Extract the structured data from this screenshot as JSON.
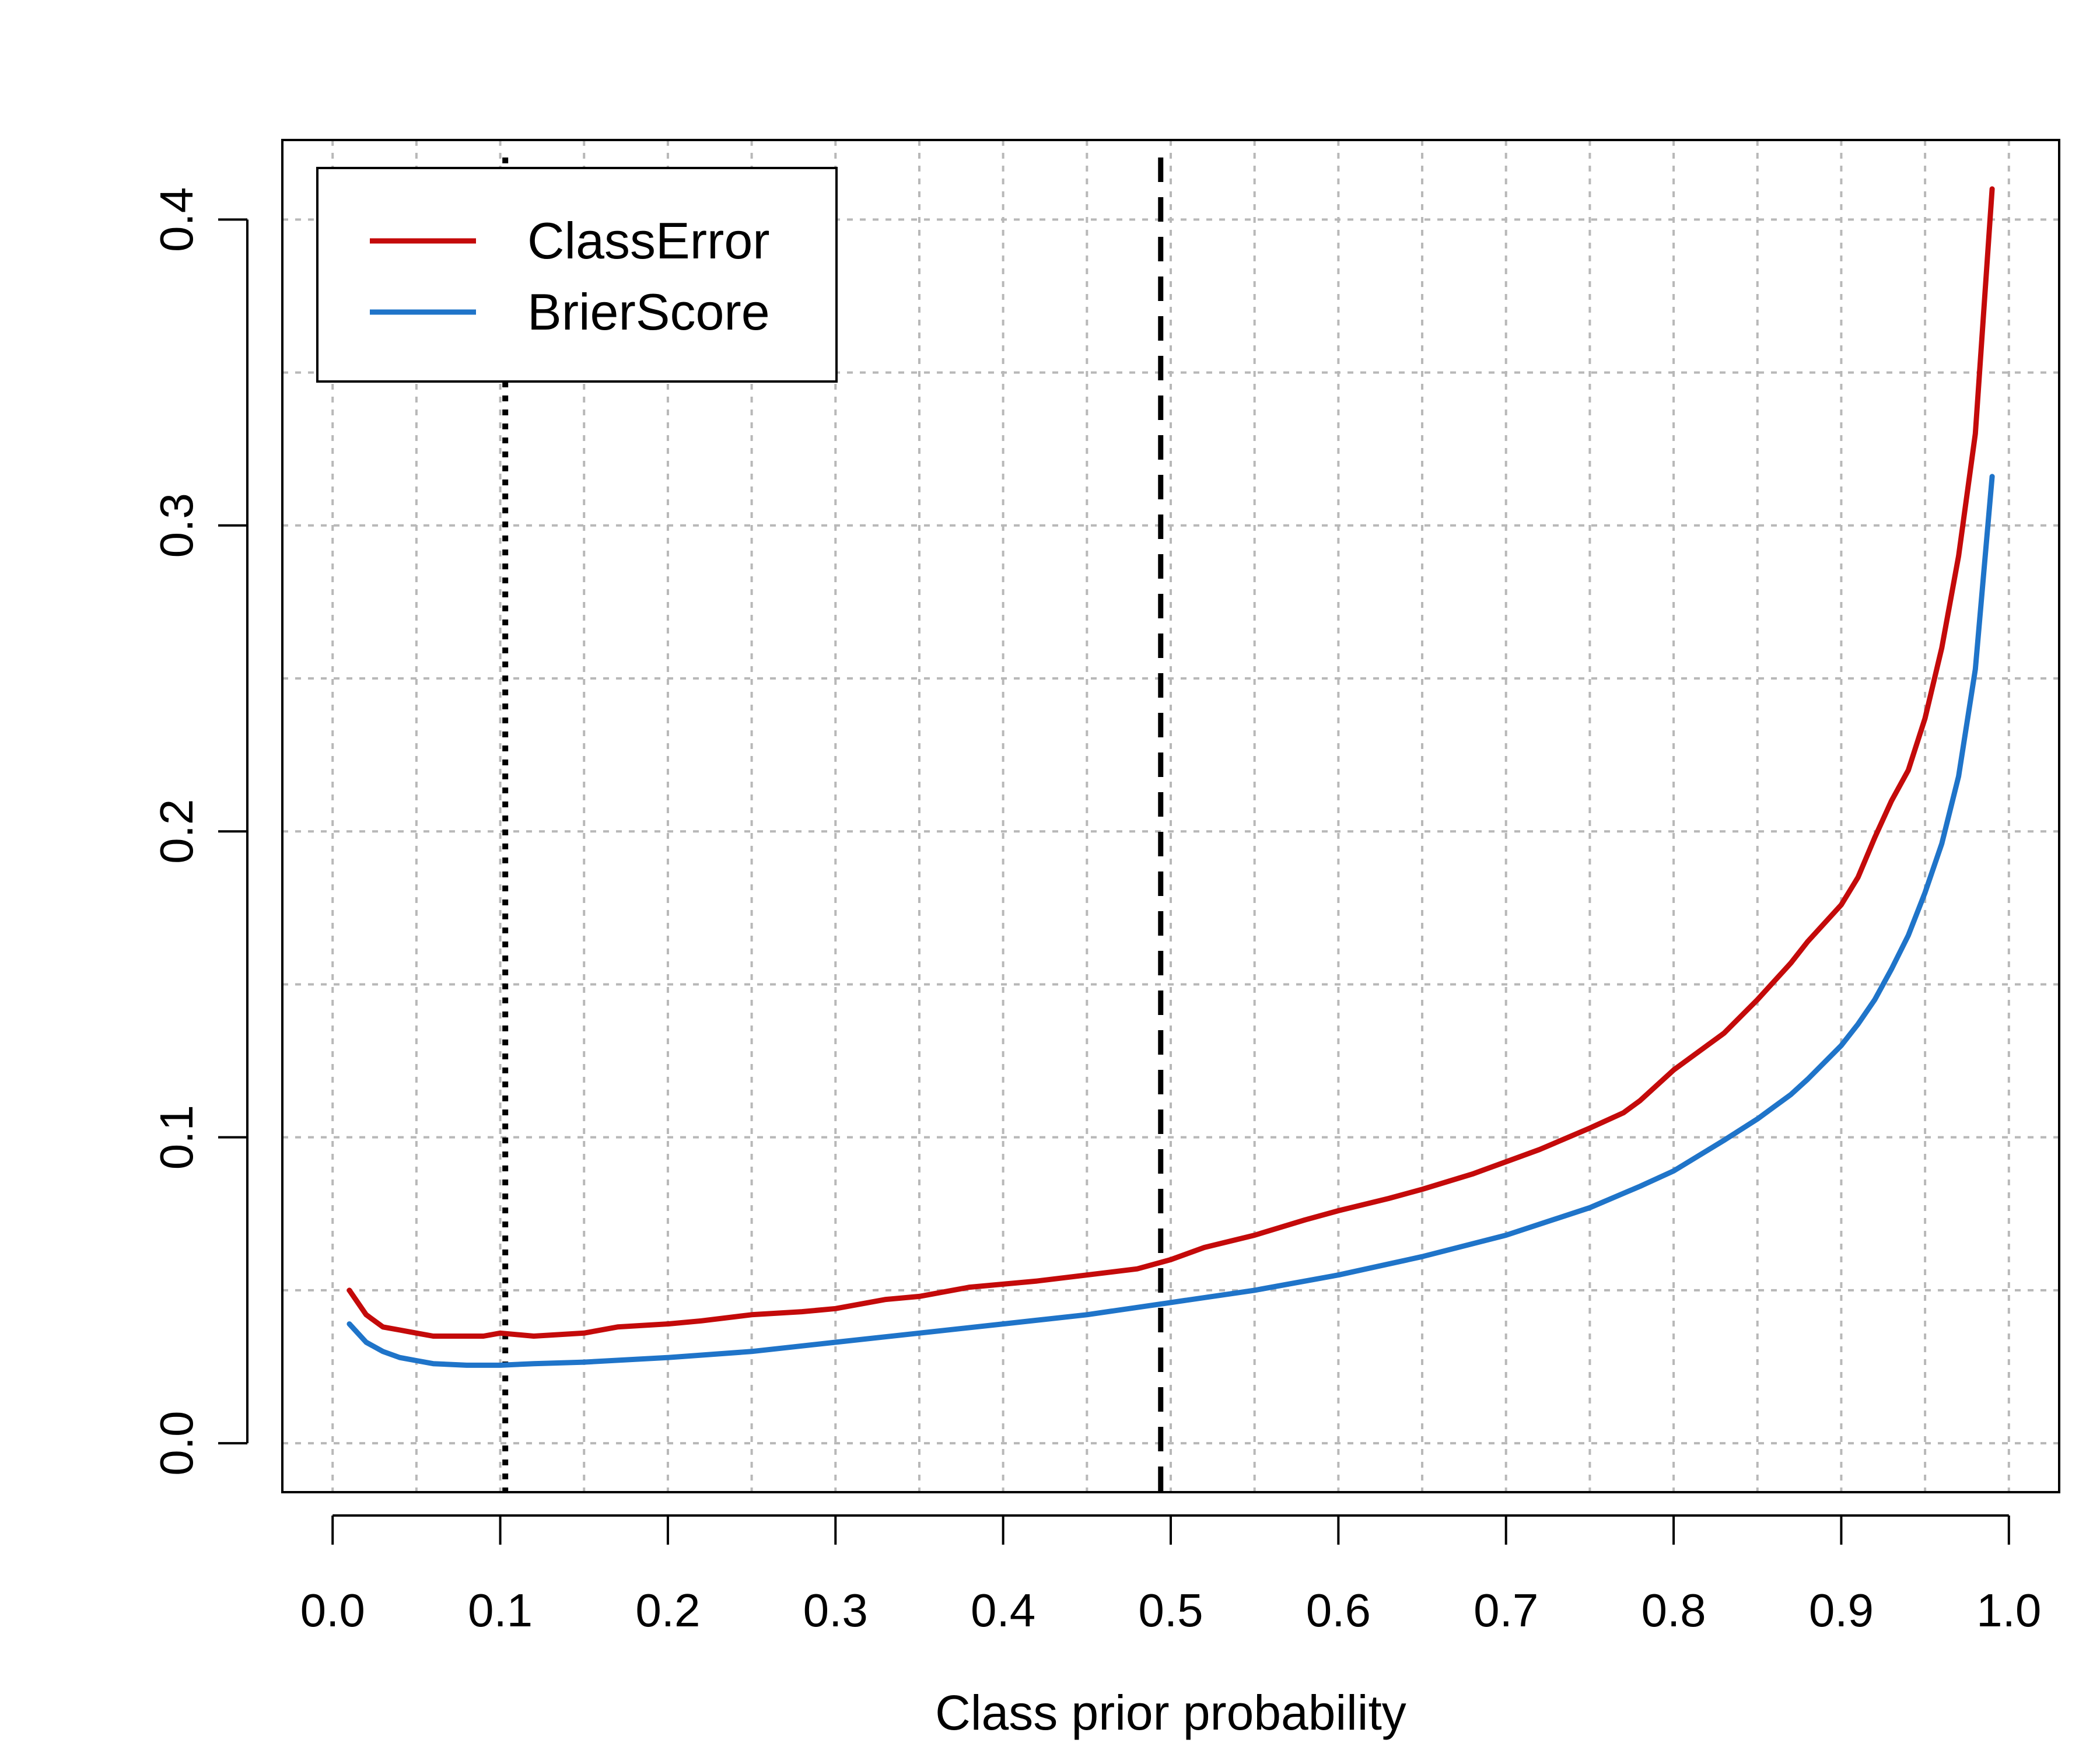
{
  "chart_data": {
    "type": "line",
    "title": "",
    "xlabel": "Class prior probability",
    "ylabel": "",
    "xlim": [
      -0.03,
      1.03
    ],
    "ylim": [
      -0.016,
      0.426
    ],
    "xticks": [
      0.0,
      0.1,
      0.2,
      0.3,
      0.4,
      0.5,
      0.6,
      0.7,
      0.8,
      0.9,
      1.0
    ],
    "xtick_labels": [
      "0.0",
      "0.1",
      "0.2",
      "0.3",
      "0.4",
      "0.5",
      "0.6",
      "0.7",
      "0.8",
      "0.9",
      "1.0"
    ],
    "yticks": [
      0.0,
      0.1,
      0.2,
      0.3,
      0.4
    ],
    "ytick_labels": [
      "0.0",
      "0.1",
      "0.2",
      "0.3",
      "0.4"
    ],
    "grid_x": [
      0.0,
      0.05,
      0.1,
      0.15,
      0.2,
      0.25,
      0.3,
      0.35,
      0.4,
      0.45,
      0.5,
      0.55,
      0.6,
      0.65,
      0.7,
      0.75,
      0.8,
      0.85,
      0.9,
      0.95,
      1.0
    ],
    "grid_y": [
      0.0,
      0.05,
      0.1,
      0.15,
      0.2,
      0.25,
      0.3,
      0.35,
      0.4
    ],
    "grid": true,
    "legend_position": "top-left",
    "series": [
      {
        "name": "ClassError",
        "color": "#c40a0a",
        "x": [
          0.01,
          0.02,
          0.03,
          0.04,
          0.05,
          0.06,
          0.07,
          0.08,
          0.09,
          0.1,
          0.12,
          0.15,
          0.17,
          0.2,
          0.22,
          0.25,
          0.28,
          0.3,
          0.33,
          0.35,
          0.38,
          0.4,
          0.42,
          0.45,
          0.48,
          0.5,
          0.52,
          0.55,
          0.58,
          0.6,
          0.63,
          0.65,
          0.68,
          0.7,
          0.72,
          0.75,
          0.77,
          0.78,
          0.8,
          0.82,
          0.83,
          0.85,
          0.87,
          0.88,
          0.9,
          0.91,
          0.92,
          0.93,
          0.94,
          0.95,
          0.96,
          0.97,
          0.98,
          0.99
        ],
        "y": [
          0.05,
          0.042,
          0.038,
          0.037,
          0.036,
          0.035,
          0.035,
          0.035,
          0.035,
          0.036,
          0.035,
          0.036,
          0.038,
          0.039,
          0.04,
          0.042,
          0.043,
          0.044,
          0.047,
          0.048,
          0.051,
          0.052,
          0.053,
          0.055,
          0.057,
          0.06,
          0.064,
          0.068,
          0.073,
          0.076,
          0.08,
          0.083,
          0.088,
          0.092,
          0.096,
          0.103,
          0.108,
          0.112,
          0.122,
          0.13,
          0.134,
          0.145,
          0.157,
          0.164,
          0.176,
          0.185,
          0.198,
          0.21,
          0.22,
          0.237,
          0.26,
          0.29,
          0.33,
          0.41
        ]
      },
      {
        "name": "BrierScore",
        "color": "#1f74c9",
        "x": [
          0.01,
          0.02,
          0.03,
          0.04,
          0.05,
          0.06,
          0.08,
          0.1,
          0.12,
          0.15,
          0.2,
          0.25,
          0.3,
          0.35,
          0.4,
          0.45,
          0.5,
          0.55,
          0.6,
          0.65,
          0.7,
          0.75,
          0.78,
          0.8,
          0.83,
          0.85,
          0.87,
          0.88,
          0.9,
          0.91,
          0.92,
          0.93,
          0.94,
          0.95,
          0.96,
          0.97,
          0.98,
          0.99
        ],
        "y": [
          0.039,
          0.033,
          0.03,
          0.028,
          0.027,
          0.026,
          0.0255,
          0.0255,
          0.026,
          0.0265,
          0.028,
          0.03,
          0.033,
          0.036,
          0.039,
          0.042,
          0.046,
          0.05,
          0.055,
          0.061,
          0.068,
          0.077,
          0.084,
          0.089,
          0.099,
          0.106,
          0.114,
          0.119,
          0.13,
          0.137,
          0.145,
          0.155,
          0.166,
          0.18,
          0.196,
          0.218,
          0.253,
          0.316
        ]
      }
    ],
    "vlines": [
      {
        "x": 0.103,
        "style": "dotted",
        "color": "#000000"
      },
      {
        "x": 0.494,
        "style": "dashed",
        "color": "#000000"
      }
    ]
  }
}
